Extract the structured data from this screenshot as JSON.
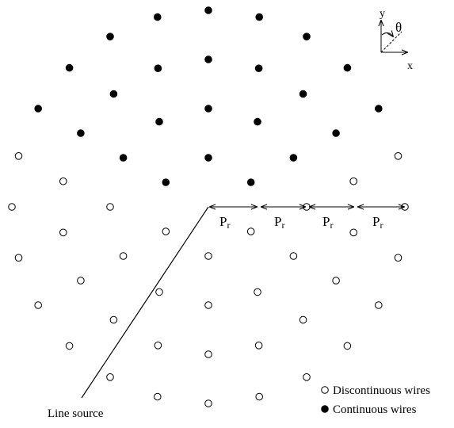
{
  "labels": {
    "period": "P",
    "period_sub": "r",
    "line_source": "Line source",
    "axis_x": "x",
    "axis_y": "y",
    "axis_theta": "θ"
  },
  "legend": {
    "discontinuous": "Discontinuous wires",
    "continuous": "Continuous wires"
  },
  "rings": [
    {
      "radius_periods": 1,
      "continuous_indices": [
        -1,
        0,
        1
      ]
    },
    {
      "radius_periods": 2,
      "continuous_indices": [
        -2,
        -1,
        0,
        1,
        2
      ]
    },
    {
      "radius_periods": 3,
      "continuous_indices": [
        -3,
        -2,
        -1,
        0,
        1,
        2,
        3
      ]
    },
    {
      "radius_periods": 4,
      "continuous_indices": [
        -4,
        -3,
        -2,
        -1,
        0,
        1,
        2,
        3,
        4
      ]
    }
  ],
  "colors": {
    "ink": "#000000",
    "paper": "#ffffff"
  }
}
